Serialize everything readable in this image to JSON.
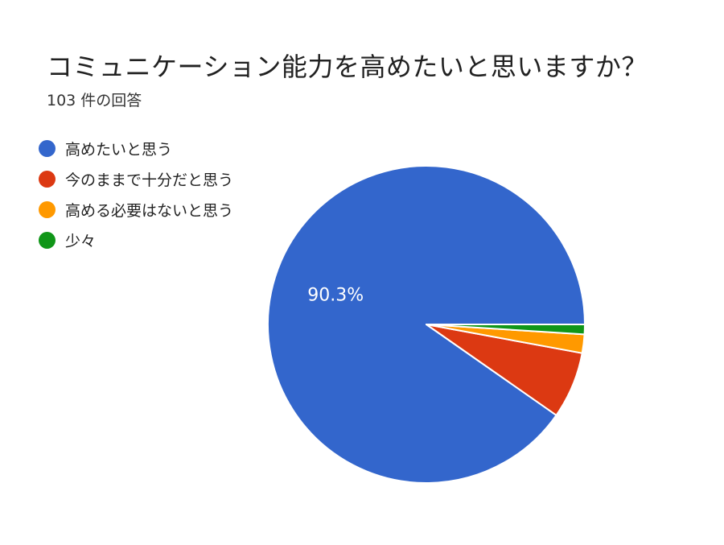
{
  "chart_data": {
    "type": "pie",
    "title": "コミュニケーション能力を高めたいと思いますか？",
    "subtitle": "103 件の回答",
    "legend_position": "top-left",
    "slices": [
      {
        "label": "高めたいと思う",
        "value": 90.3,
        "color": "#3366cc",
        "data_label": "90.3%"
      },
      {
        "label": "今のままで十分だと思う",
        "value": 6.8,
        "color": "#dc3912",
        "data_label": ""
      },
      {
        "label": "高める必要はないと思う",
        "value": 1.9,
        "color": "#ff9900",
        "data_label": ""
      },
      {
        "label": "少々",
        "value": 1.0,
        "color": "#109618",
        "data_label": ""
      }
    ]
  }
}
